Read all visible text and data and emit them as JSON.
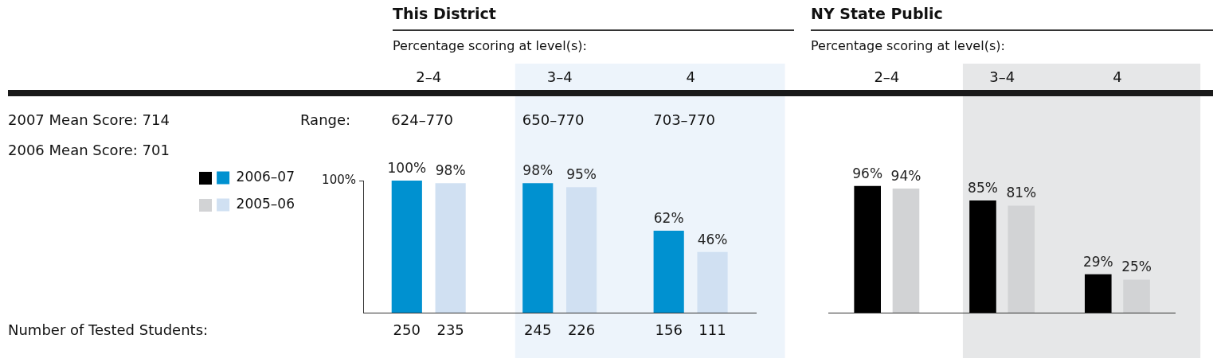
{
  "chart_data": [
    {
      "type": "bar",
      "title": "This District",
      "subtitle": "Percentage scoring at level(s):",
      "categories": [
        "2–4",
        "3–4",
        "4"
      ],
      "series": [
        {
          "name": "2006–07",
          "color": "#0091d0",
          "values": [
            100,
            98,
            62
          ],
          "value_labels": [
            "100%",
            "98%",
            "62%"
          ]
        },
        {
          "name": "2005–06",
          "color": "#d0e0f2",
          "values": [
            98,
            95,
            46
          ],
          "value_labels": [
            "98%",
            "95%",
            "46%"
          ]
        }
      ],
      "ylim": [
        0,
        100
      ],
      "yticks": [
        {
          "value": 100,
          "label": "100%"
        }
      ],
      "legend": "left",
      "bands": [
        {
          "axis": "x",
          "from": "3–4",
          "to": "4",
          "color": "#edf4fb"
        }
      ],
      "annotations": [
        "2007 Mean Score: 714",
        "2006 Mean Score: 701",
        "Range:",
        "624–770",
        "650–770",
        "703–770",
        "Number of Tested Students:",
        "250",
        "235",
        "245",
        "226",
        "156",
        "111"
      ]
    },
    {
      "type": "bar",
      "title": "NY State Public",
      "subtitle": "Percentage scoring at level(s):",
      "categories": [
        "2–4",
        "3–4",
        "4"
      ],
      "series": [
        {
          "color": "#000000",
          "values": [
            96,
            85,
            29
          ],
          "value_labels": [
            "96%",
            "85%",
            "29%"
          ]
        },
        {
          "color": "#d2d3d5",
          "values": [
            94,
            81,
            25
          ],
          "value_labels": [
            "94%",
            "81%",
            "25%"
          ]
        }
      ],
      "tick_labels": "x",
      "bands": [
        {
          "axis": "x",
          "from": "3–4",
          "to": "4",
          "color": "#e6e7e8"
        }
      ]
    }
  ]
}
